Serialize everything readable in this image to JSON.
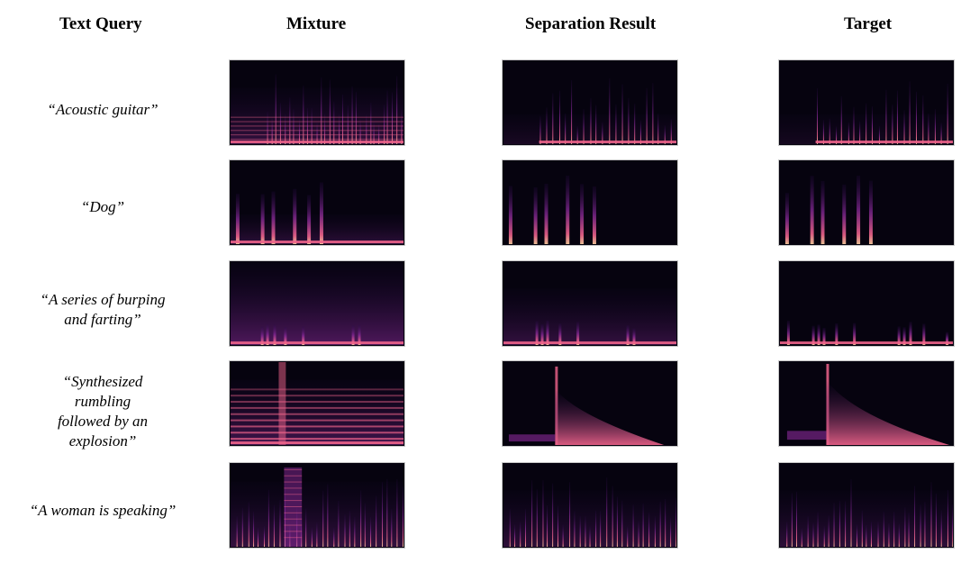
{
  "figure": {
    "headers": {
      "text_query": "Text Query",
      "mixture": "Mixture",
      "separation": "Separation Result",
      "target": "Target"
    },
    "rows": [
      {
        "query_lines": [
          "“Acoustic guitar”"
        ]
      },
      {
        "query_lines": [
          "“Dog”"
        ]
      },
      {
        "query_lines": [
          "“A series of burping",
          "and farting”"
        ]
      },
      {
        "query_lines": [
          "“Synthesized",
          "rumbling",
          "followed by an",
          "explosion”"
        ]
      },
      {
        "query_lines": [
          "“A woman is speaking”"
        ]
      }
    ],
    "colors": {
      "background": "#06030f",
      "low": "#2a0a4a",
      "mid": "#8a2a9a",
      "high": "#f0648c",
      "peak": "#ffd0a0"
    }
  }
}
